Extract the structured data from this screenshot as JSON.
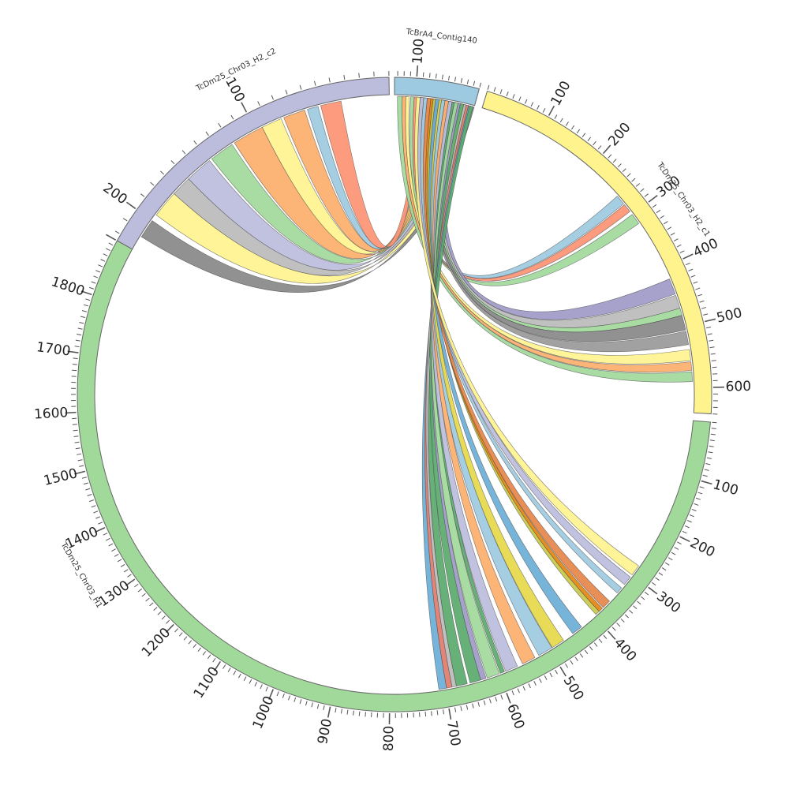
{
  "chart_data": {
    "type": "chord",
    "segments": [
      {
        "id": "H2_c2",
        "name": "TcDm25_Chr03_H2_c2",
        "length": 225,
        "color": "#bcbddc",
        "tick_labels": [
          100,
          200
        ]
      },
      {
        "id": "contig",
        "name": "TcBrA4_Contig140",
        "length": 135,
        "color": "#9ecae1",
        "tick_labels": [
          100
        ]
      },
      {
        "id": "H2_c1",
        "name": "TcDm25_Chr03_H2_c1",
        "length": 640,
        "color": "#fff38e",
        "tick_labels": [
          100,
          200,
          300,
          400,
          500,
          600
        ]
      },
      {
        "id": "H1",
        "name": "TcDm25_Chr03_H1",
        "length": 1900,
        "color": "#a1d99b",
        "tick_labels": [
          100,
          200,
          300,
          400,
          500,
          600,
          700,
          800,
          900,
          1000,
          1100,
          1200,
          1300,
          1400,
          1500,
          1600,
          1700,
          1800
        ]
      }
    ],
    "links": [
      {
        "from": "H2_c2",
        "from_start": 200,
        "from_end": 214,
        "to": "contig",
        "to_start": 0,
        "to_end": 10,
        "color": "#888888"
      },
      {
        "from": "H2_c2",
        "from_start": 175,
        "from_end": 195,
        "to": "contig",
        "to_start": 10,
        "to_end": 22,
        "color": "#fff38e"
      },
      {
        "from": "H2_c2",
        "from_start": 160,
        "from_end": 175,
        "to": "contig",
        "to_start": 22,
        "to_end": 32,
        "color": "#bbbbbb"
      },
      {
        "from": "H2_c2",
        "from_start": 140,
        "from_end": 160,
        "to": "contig",
        "to_start": 32,
        "to_end": 44,
        "color": "#bcbddc"
      },
      {
        "from": "H2_c2",
        "from_start": 120,
        "from_end": 138,
        "to": "contig",
        "to_start": 44,
        "to_end": 54,
        "color": "#a1d99b"
      },
      {
        "from": "H2_c2",
        "from_start": 95,
        "from_end": 118,
        "to": "contig",
        "to_start": 54,
        "to_end": 64,
        "color": "#fdae6b"
      },
      {
        "from": "H2_c2",
        "from_start": 80,
        "from_end": 95,
        "to": "contig",
        "to_start": 64,
        "to_end": 72,
        "color": "#fff38e"
      },
      {
        "from": "H2_c2",
        "from_start": 62,
        "from_end": 78,
        "to": "contig",
        "to_start": 72,
        "to_end": 80,
        "color": "#fdae6b"
      },
      {
        "from": "H2_c2",
        "from_start": 52,
        "from_end": 60,
        "to": "contig",
        "to_start": 80,
        "to_end": 86,
        "color": "#9ecae1"
      },
      {
        "from": "H2_c2",
        "from_start": 35,
        "from_end": 50,
        "to": "contig",
        "to_start": 86,
        "to_end": 94,
        "color": "#fc9272"
      },
      {
        "from": "contig",
        "from_start": 90,
        "from_end": 96,
        "to": "H2_c1",
        "to_start": 262,
        "to_end": 278,
        "color": "#9ecae1"
      },
      {
        "from": "contig",
        "from_start": 96,
        "from_end": 102,
        "to": "H2_c1",
        "to_start": 280,
        "to_end": 294,
        "color": "#fc9272"
      },
      {
        "from": "contig",
        "from_start": 102,
        "from_end": 108,
        "to": "H2_c1",
        "to_start": 300,
        "to_end": 318,
        "color": "#a1d99b"
      },
      {
        "from": "contig",
        "from_start": 30,
        "from_end": 42,
        "to": "H2_c1",
        "to_start": 420,
        "to_end": 446,
        "color": "#9e9ac8"
      },
      {
        "from": "contig",
        "from_start": 42,
        "from_end": 50,
        "to": "H2_c1",
        "to_start": 448,
        "to_end": 470,
        "color": "#bbbbbb"
      },
      {
        "from": "contig",
        "from_start": 50,
        "from_end": 56,
        "to": "H2_c1",
        "to_start": 470,
        "to_end": 482,
        "color": "#a1d99b"
      },
      {
        "from": "contig",
        "from_start": 56,
        "from_end": 64,
        "to": "H2_c1",
        "to_start": 482,
        "to_end": 506,
        "color": "#888888"
      },
      {
        "from": "contig",
        "from_start": 64,
        "from_end": 70,
        "to": "H2_c1",
        "to_start": 508,
        "to_end": 530,
        "color": "#999999"
      },
      {
        "from": "contig",
        "from_start": 110,
        "from_end": 116,
        "to": "H2_c1",
        "to_start": 538,
        "to_end": 556,
        "color": "#fff38e"
      },
      {
        "from": "contig",
        "from_start": 116,
        "from_end": 122,
        "to": "H2_c1",
        "to_start": 558,
        "to_end": 572,
        "color": "#fdae6b"
      },
      {
        "from": "contig",
        "from_start": 122,
        "from_end": 130,
        "to": "H2_c1",
        "to_start": 574,
        "to_end": 590,
        "color": "#a1d99b"
      },
      {
        "from": "contig",
        "from_start": 4,
        "from_end": 10,
        "to": "H1",
        "to_start": 698,
        "to_end": 712,
        "color": "#6baed6"
      },
      {
        "from": "contig",
        "from_start": 10,
        "from_end": 14,
        "to": "H1",
        "to_start": 688,
        "to_end": 698,
        "color": "#e07b6a"
      },
      {
        "from": "contig",
        "from_start": 14,
        "from_end": 18,
        "to": "H1",
        "to_start": 680,
        "to_end": 688,
        "color": "#bbbbbb"
      },
      {
        "from": "contig",
        "from_start": 2,
        "from_end": 8,
        "to": "H1",
        "to_start": 660,
        "to_end": 680,
        "color": "#5aaa6e"
      },
      {
        "from": "contig",
        "from_start": 18,
        "from_end": 24,
        "to": "H1",
        "to_start": 635,
        "to_end": 655,
        "color": "#5aaa6e"
      },
      {
        "from": "contig",
        "from_start": 24,
        "from_end": 28,
        "to": "H1",
        "to_start": 625,
        "to_end": 635,
        "color": "#9e9ac8"
      },
      {
        "from": "contig",
        "from_start": 28,
        "from_end": 34,
        "to": "H1",
        "to_start": 600,
        "to_end": 623,
        "color": "#a1d99b"
      },
      {
        "from": "contig",
        "from_start": 34,
        "from_end": 38,
        "to": "H1",
        "to_start": 590,
        "to_end": 598,
        "color": "#5aaa6e"
      },
      {
        "from": "contig",
        "from_start": 38,
        "from_end": 44,
        "to": "H1",
        "to_start": 565,
        "to_end": 588,
        "color": "#bcbddc"
      },
      {
        "from": "contig",
        "from_start": 44,
        "from_end": 50,
        "to": "H1",
        "to_start": 530,
        "to_end": 555,
        "color": "#fdae6b"
      },
      {
        "from": "contig",
        "from_start": 50,
        "from_end": 56,
        "to": "H1",
        "to_start": 495,
        "to_end": 522,
        "color": "#9ecae1"
      },
      {
        "from": "contig",
        "from_start": 56,
        "from_end": 60,
        "to": "H1",
        "to_start": 470,
        "to_end": 494,
        "color": "#e5d84a"
      },
      {
        "from": "contig",
        "from_start": 60,
        "from_end": 66,
        "to": "H1",
        "to_start": 430,
        "to_end": 450,
        "color": "#6baed6"
      },
      {
        "from": "contig",
        "from_start": 66,
        "from_end": 70,
        "to": "H1",
        "to_start": 388,
        "to_end": 396,
        "color": "#c7c94a"
      },
      {
        "from": "contig",
        "from_start": 70,
        "from_end": 74,
        "to": "H1",
        "to_start": 380,
        "to_end": 388,
        "color": "#e6850e"
      },
      {
        "from": "contig",
        "from_start": 74,
        "from_end": 80,
        "to": "H1",
        "to_start": 362,
        "to_end": 378,
        "color": "#e6854a"
      },
      {
        "from": "contig",
        "from_start": 80,
        "from_end": 86,
        "to": "H1",
        "to_start": 330,
        "to_end": 342,
        "color": "#9ecae1"
      },
      {
        "from": "contig",
        "from_start": 86,
        "from_end": 92,
        "to": "H1",
        "to_start": 305,
        "to_end": 322,
        "color": "#bcbddc"
      },
      {
        "from": "contig",
        "from_start": 92,
        "from_end": 98,
        "to": "H1",
        "to_start": 280,
        "to_end": 300,
        "color": "#fff38e"
      }
    ]
  }
}
